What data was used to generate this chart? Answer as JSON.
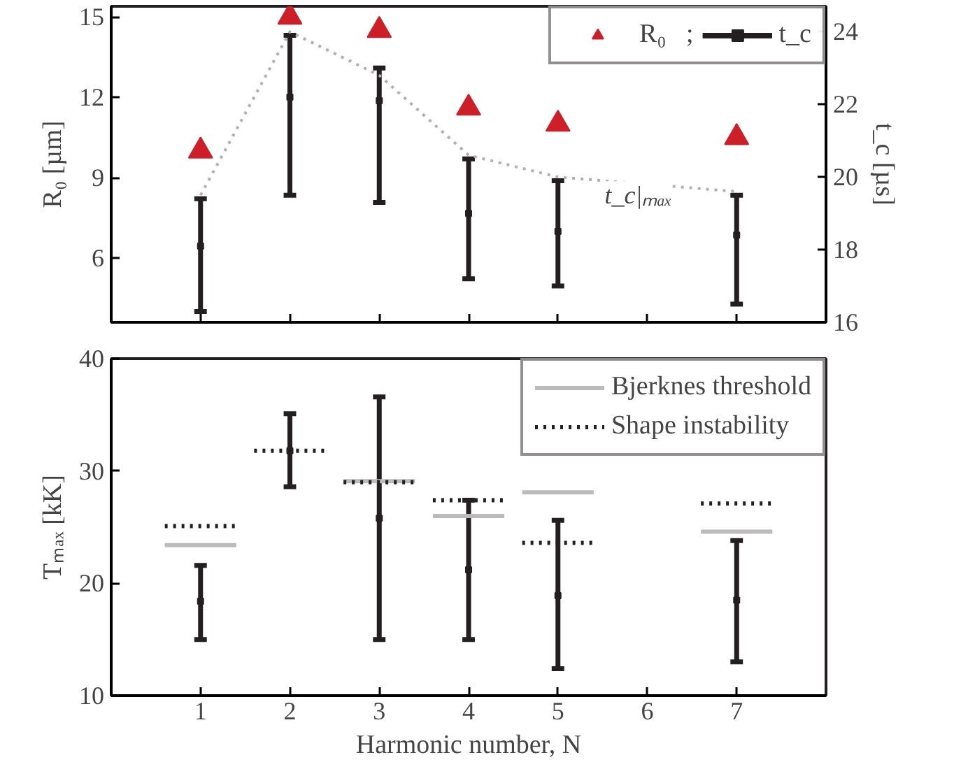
{
  "chart_data": [
    {
      "type": "scatter",
      "x": [
        1,
        2,
        3,
        4,
        5,
        7
      ],
      "xlim": [
        0,
        8
      ],
      "xticks": [
        {
          "value": 0,
          "label": null
        },
        {
          "value": 1,
          "label": null
        },
        {
          "value": 2,
          "label": null
        },
        {
          "value": 3,
          "label": null
        },
        {
          "value": 4,
          "label": null
        },
        {
          "value": 5,
          "label": null
        },
        {
          "value": 6,
          "label": null
        },
        {
          "value": 7,
          "label": null
        },
        {
          "value": 8,
          "label": null
        }
      ],
      "ylim": [
        3.6,
        15.4
      ],
      "yticks": [
        6,
        9,
        12,
        15
      ],
      "y2lim": [
        16,
        24.7
      ],
      "y2ticks": [
        16,
        18,
        20,
        22,
        24
      ],
      "ylabel": "R₀ [µm]",
      "y2label": "t_c [µs]",
      "tick_labels": "y",
      "legend": "top right",
      "series": [
        {
          "name": "R₀   ;",
          "marker": "triangle",
          "color": "#cc1f27",
          "values": [
            10.0,
            15.0,
            14.5,
            11.6,
            11.0,
            10.5
          ]
        },
        {
          "name": "t_c",
          "axis": "y2",
          "marker": "square",
          "color": "#231f20",
          "values": [
            18.1,
            22.2,
            22.1,
            19.0,
            18.5,
            18.4
          ],
          "errors": [
            [
              16.3,
              19.4
            ],
            [
              19.5,
              23.9
            ],
            [
              19.3,
              23.0
            ],
            [
              17.2,
              20.5
            ],
            [
              17.0,
              19.9
            ],
            [
              16.5,
              19.5
            ]
          ]
        },
        {
          "type": "line",
          "axis": "y2",
          "line_style": "dotted",
          "color": "#b0b0b0",
          "values": [
            19.5,
            24.0,
            22.8,
            20.6,
            20.0,
            19.6
          ]
        }
      ],
      "annotations": [
        "t_c|ₘₐₓ"
      ]
    },
    {
      "type": "scatter",
      "x": [
        1,
        2,
        3,
        4,
        5,
        7
      ],
      "xlim": [
        0,
        8
      ],
      "xticks": [
        1,
        2,
        3,
        4,
        5,
        6,
        7
      ],
      "ylim": [
        10,
        40
      ],
      "yticks": [
        10,
        20,
        30,
        40
      ],
      "xlabel": "Harmonic number, N",
      "ylabel": "Tₘₐₓ [kK]",
      "legend": "top right",
      "series": [
        {
          "marker": "square",
          "color": "#231f20",
          "values": [
            18.4,
            31.8,
            25.8,
            21.2,
            18.9,
            18.5
          ],
          "errors": [
            [
              15.0,
              21.6
            ],
            [
              28.6,
              35.1
            ],
            [
              15.0,
              36.6
            ],
            [
              15.0,
              27.4
            ],
            [
              12.4,
              25.6
            ],
            [
              13.0,
              23.8
            ]
          ]
        },
        {
          "name": "Bjerknes threshold",
          "type": "line",
          "line_style": "solid",
          "color": "#bbbbbb",
          "x": [
            0.6,
            1.4,
            null,
            2.6,
            3.4,
            null,
            3.6,
            4.4,
            null,
            4.6,
            5.4,
            null,
            6.6,
            7.4
          ],
          "values": [
            23.4,
            23.4,
            null,
            29.1,
            29.1,
            null,
            26.0,
            26.0,
            null,
            28.1,
            28.1,
            null,
            24.6,
            24.6
          ]
        },
        {
          "name": "Shape instability",
          "type": "line",
          "line_style": "dotted",
          "color": "#231f20",
          "x": [
            0.6,
            1.4,
            null,
            1.6,
            2.4,
            null,
            2.6,
            3.4,
            null,
            3.6,
            4.4,
            null,
            4.6,
            5.4,
            null,
            6.6,
            7.4
          ],
          "values": [
            25.1,
            25.1,
            null,
            31.8,
            31.8,
            null,
            29.0,
            29.0,
            null,
            27.4,
            27.4,
            null,
            23.6,
            23.6,
            null,
            27.1,
            27.1
          ]
        }
      ]
    }
  ]
}
